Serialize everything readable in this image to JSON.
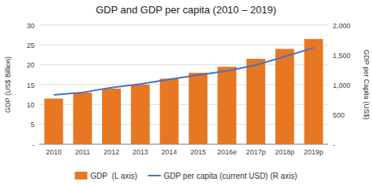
{
  "chart_data": {
    "type": "bar",
    "title": "GDP and GDP per capita (2010 – 2019)",
    "categories": [
      "2010",
      "2011",
      "2012",
      "2013",
      "2014",
      "2015",
      "2016e",
      "2017p",
      "2018p",
      "2019p"
    ],
    "series": [
      {
        "name": "GDP  (L axis)",
        "type": "bar",
        "color": "#E87722",
        "values": [
          11.5,
          13.0,
          14.0,
          15.0,
          16.5,
          18.0,
          19.5,
          21.5,
          24.0,
          26.5
        ]
      },
      {
        "name": "GDP per capita (current USD) (R axis)",
        "type": "line",
        "axis": "y2",
        "color": "#4472C4",
        "values": [
          830,
          870,
          950,
          1010,
          1090,
          1160,
          1230,
          1330,
          1470,
          1620
        ]
      }
    ],
    "ylabel": "GDP (US$ Billion)",
    "y2label": "GDP per Capita (US$)",
    "ylim": [
      0,
      30
    ],
    "yticks": [
      {
        "value": 0,
        "label": "-"
      },
      5,
      10,
      15,
      20,
      25,
      30
    ],
    "y2lim": [
      0,
      2000
    ],
    "y2ticks": [
      {
        "value": 0,
        "label": "-"
      },
      500,
      {
        "value": 1000,
        "label": "1,000"
      },
      {
        "value": 1500,
        "label": "1,500"
      },
      {
        "value": 2000,
        "label": "2,000"
      }
    ],
    "grid": true,
    "legend": "bottom"
  }
}
